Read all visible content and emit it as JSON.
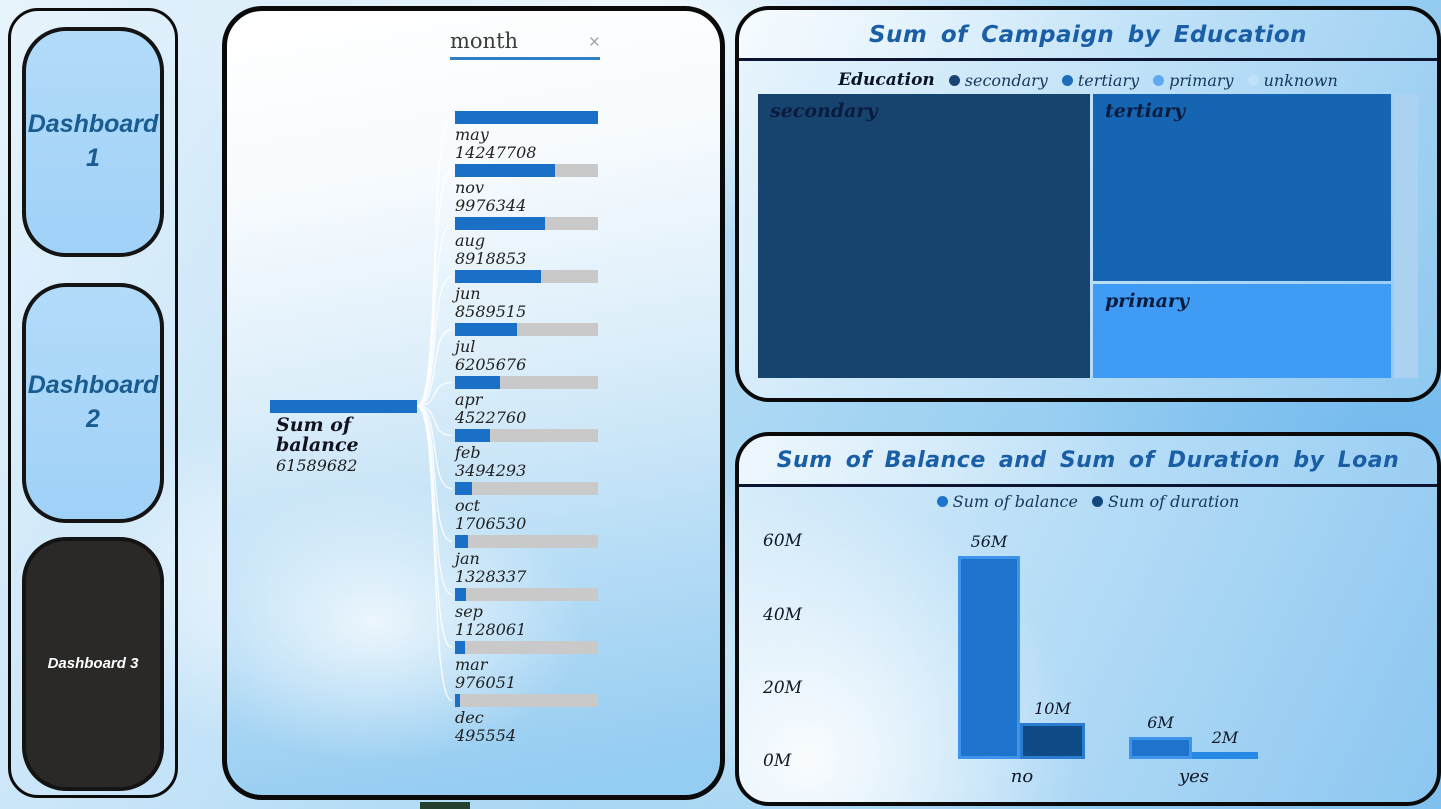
{
  "sidebar": {
    "buttons": [
      {
        "label": "Dashboard 1"
      },
      {
        "label": "Dashboard 2"
      },
      {
        "label": "Dashboard 3"
      }
    ]
  },
  "decomp": {
    "field": "month",
    "close": "×",
    "root_label": "Sum of balance",
    "root_value": "61589682",
    "bar_color": "#1A6FC7",
    "track_color": "#C9C9C9",
    "nodes": [
      {
        "label": "may",
        "value": "14247708",
        "pct": 100
      },
      {
        "label": "nov",
        "value": "9976344",
        "pct": 70
      },
      {
        "label": "aug",
        "value": "8918853",
        "pct": 62.6
      },
      {
        "label": "jun",
        "value": "8589515",
        "pct": 60.3
      },
      {
        "label": "jul",
        "value": "6205676",
        "pct": 43.6
      },
      {
        "label": "apr",
        "value": "4522760",
        "pct": 31.7
      },
      {
        "label": "feb",
        "value": "3494293",
        "pct": 24.5
      },
      {
        "label": "oct",
        "value": "1706530",
        "pct": 12
      },
      {
        "label": "jan",
        "value": "1328337",
        "pct": 9.3
      },
      {
        "label": "sep",
        "value": "1128061",
        "pct": 7.9
      },
      {
        "label": "mar",
        "value": "976051",
        "pct": 6.9
      },
      {
        "label": "dec",
        "value": "495554",
        "pct": 3.5
      }
    ]
  },
  "treemap": {
    "title": "Sum of Campaign by Education",
    "legend_title": "Education",
    "legend": [
      {
        "label": "secondary",
        "color": "#1A4473"
      },
      {
        "label": "tertiary",
        "color": "#1E6CB8"
      },
      {
        "label": "primary",
        "color": "#5FA9F2"
      },
      {
        "label": "unknown",
        "color": "#CEE6FA"
      }
    ],
    "tiles": [
      {
        "label": "secondary",
        "color": "#17436F"
      },
      {
        "label": "tertiary",
        "color": "#1565B2"
      },
      {
        "label": "primary",
        "color": "#3F9BF4"
      },
      {
        "label": "unknown",
        "color": "#ACD2F1"
      }
    ]
  },
  "bars": {
    "title": "Sum of Balance and Sum of Duration by Loan",
    "legend": [
      {
        "label": "Sum of balance",
        "color": "#1E74CC"
      },
      {
        "label": "Sum of duration",
        "color": "#11497F"
      }
    ],
    "y_ticks": [
      {
        "label": "60M"
      },
      {
        "label": "40M"
      },
      {
        "label": "20M"
      },
      {
        "label": "0M"
      }
    ],
    "groups": [
      {
        "category": "no",
        "bars": [
          {
            "series": "Sum of balance",
            "label": "56M",
            "value": 56,
            "color": "#1E74CC",
            "border": "#3E93EA"
          },
          {
            "series": "Sum of duration",
            "label": "10M",
            "value": 10,
            "color": "#0F4B87",
            "border": "#2B7BD0"
          }
        ]
      },
      {
        "category": "yes",
        "bars": [
          {
            "series": "Sum of balance",
            "label": "6M",
            "value": 6,
            "color": "#1E74CC",
            "border": "#3E93EA"
          },
          {
            "series": "Sum of duration",
            "label": "2M",
            "value": 2,
            "color": "#2589E5",
            "border": "#2589E5"
          }
        ]
      }
    ]
  },
  "chart_data": [
    {
      "type": "bar",
      "title": "Sum of Balance and Sum of Duration by Loan",
      "categories": [
        "no",
        "yes"
      ],
      "series": [
        {
          "name": "Sum of balance",
          "values": [
            56000000,
            6000000
          ]
        },
        {
          "name": "Sum of duration",
          "values": [
            10000000,
            2000000
          ]
        }
      ],
      "data_labels": [
        [
          "56M",
          "6M"
        ],
        [
          "10M",
          "2M"
        ]
      ],
      "xlabel": "Loan",
      "ylabel": "",
      "y_ticks": [
        "0M",
        "20M",
        "40M",
        "60M"
      ],
      "ylim": [
        0,
        60000000
      ],
      "grid": false,
      "legend_position": "top"
    },
    {
      "type": "treemap",
      "title": "Sum of Campaign by Education",
      "legend_title": "Education",
      "categories": [
        "secondary",
        "tertiary",
        "primary",
        "unknown"
      ],
      "area_pct_estimate": [
        50,
        31,
        15,
        4
      ],
      "legend_position": "top"
    },
    {
      "type": "bar",
      "title": "Decomposition tree: Sum of balance by month",
      "root_label": "Sum of balance",
      "root_value": 61589682,
      "categories": [
        "may",
        "nov",
        "aug",
        "jun",
        "jul",
        "apr",
        "feb",
        "oct",
        "jan",
        "sep",
        "mar",
        "dec"
      ],
      "values": [
        14247708,
        9976344,
        8918853,
        8589515,
        6205676,
        4522760,
        3494293,
        1706530,
        1328337,
        1128061,
        976051,
        495554
      ],
      "orientation": "horizontal"
    }
  ]
}
